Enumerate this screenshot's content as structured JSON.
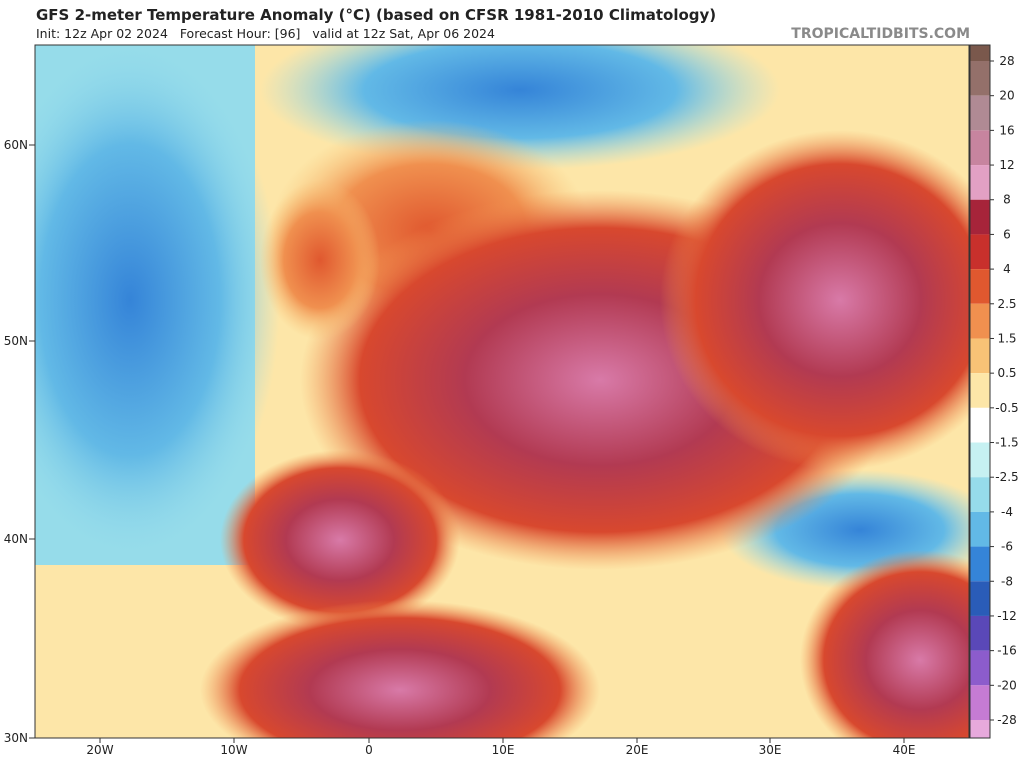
{
  "header": {
    "title": "GFS 2-meter Temperature Anomaly (°C) (based on CFSR 1981-2010 Climatology)",
    "subtitle": "Init: 12z Apr 02 2024   Forecast Hour: [96]   valid at 12z Sat, Apr 06 2024",
    "credit": "TROPICALTIDBITS.COM"
  },
  "map": {
    "lat_labels": [
      "60N",
      "50N",
      "40N",
      "30N"
    ],
    "lon_labels": [
      "20W",
      "10W",
      "0",
      "10E",
      "20E",
      "30E",
      "40E"
    ]
  },
  "colorbar": {
    "labels": [
      "28",
      "20",
      "16",
      "12",
      "8",
      "6",
      "4",
      "2.5",
      "1.5",
      "0.5",
      "-0.5",
      "-1.5",
      "-2.5",
      "-4",
      "-6",
      "-8",
      "-12",
      "-16",
      "-20",
      "-28"
    ],
    "colors": [
      "#7a584c",
      "#94706a",
      "#b08a94",
      "#c7849f",
      "#e2a0c4",
      "#a6243a",
      "#c8302c",
      "#e0582f",
      "#f0904f",
      "#f8c276",
      "#fde6a8",
      "#ffffff",
      "#c6f1f2",
      "#96dcea",
      "#62b9e6",
      "#3584d8",
      "#2a5cb8",
      "#5a48b8",
      "#8c5ccc",
      "#c57bd4",
      "#e7a9dc"
    ]
  }
}
